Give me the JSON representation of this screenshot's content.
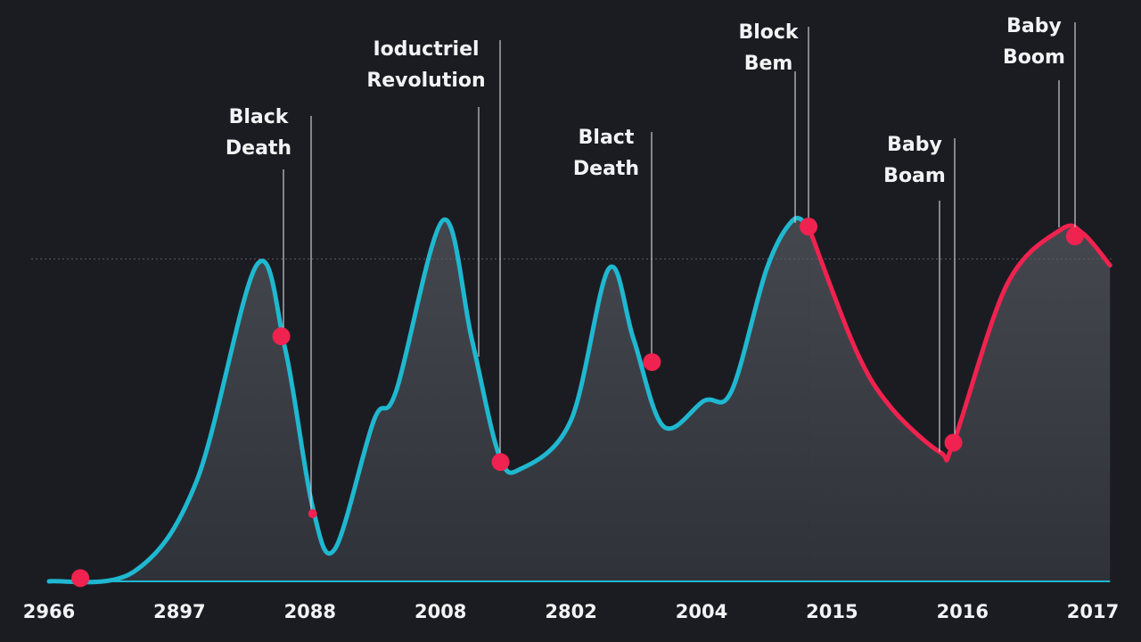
{
  "chart_data": {
    "type": "line",
    "categories": [
      "2966",
      "2897",
      "2088",
      "2008",
      "2802",
      "2004",
      "2015",
      "2016",
      "2017"
    ],
    "ylim": [
      0,
      120
    ],
    "reference_line": 100,
    "series": [
      {
        "color": "#1fb8d0",
        "x": [
          0,
          0.65,
          1.13,
          1.59,
          1.81,
          2.02,
          2.19,
          2.49,
          2.66,
          3.02,
          3.24,
          3.45,
          3.62,
          4.0,
          4.29,
          4.48,
          4.71,
          5.02,
          5.23,
          5.5,
          5.7,
          5.82
        ],
        "values": [
          0,
          3,
          31,
          98,
          72,
          23,
          10,
          50,
          59,
          112,
          75,
          39,
          35,
          50,
          97,
          75,
          48,
          56,
          59,
          97,
          112,
          110
        ]
      },
      {
        "color": "#f0224f",
        "x": [
          5.82,
          6.18,
          6.45,
          6.83,
          6.93,
          7.34,
          7.75,
          7.92,
          8.13
        ],
        "values": [
          110,
          72,
          54,
          40,
          43,
          92,
          109,
          108,
          98
        ]
      }
    ],
    "markers": {
      "color": "#f0224f",
      "x": [
        0.24,
        1.78,
        2.02,
        3.46,
        4.62,
        5.82,
        6.93,
        7.86
      ],
      "values": [
        1,
        76,
        21,
        37,
        68,
        110,
        43,
        107
      ]
    },
    "annotations": [
      {
        "lines": [
          "Black",
          "Death"
        ]
      },
      {
        "lines": [
          "Ioductriel",
          "Revolution"
        ]
      },
      {
        "lines": [
          "Blact",
          "Death"
        ]
      },
      {
        "lines": [
          "Block",
          "Bem"
        ]
      },
      {
        "lines": [
          "Baby",
          "Boam"
        ]
      },
      {
        "lines": [
          "Baby",
          "Boom"
        ]
      }
    ]
  }
}
